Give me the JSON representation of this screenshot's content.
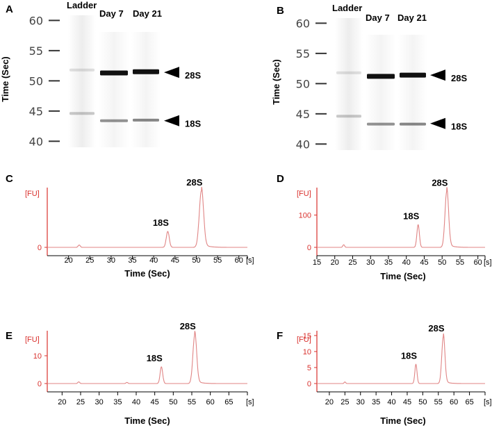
{
  "colors": {
    "trace": "#e08585",
    "axis": "#d9302c",
    "band": "#111111"
  },
  "gels": [
    {
      "panel": "A",
      "y_label": "Time (Sec)",
      "y_ticks": [
        60,
        55,
        50,
        45,
        40
      ],
      "ylim": [
        39,
        62
      ],
      "lanes": [
        {
          "label": "Ladder",
          "bands": [
            {
              "time": 51.8,
              "intensity": 0.12
            },
            {
              "time": 44.6,
              "intensity": 0.22
            }
          ]
        },
        {
          "label": "Day 7",
          "bands": [
            {
              "time": 51.3,
              "intensity": 1.0
            },
            {
              "time": 43.4,
              "intensity": 0.45
            }
          ]
        },
        {
          "label": "Day 21",
          "bands": [
            {
              "time": 51.5,
              "intensity": 1.0
            },
            {
              "time": 43.5,
              "intensity": 0.5
            }
          ]
        }
      ],
      "markers": [
        {
          "label": "28S",
          "time": 51.4
        },
        {
          "label": "18S",
          "time": 43.4
        }
      ]
    },
    {
      "panel": "B",
      "y_label": "Time (Sec)",
      "y_ticks": [
        60,
        55,
        50,
        45,
        40
      ],
      "ylim": [
        39,
        62
      ],
      "lanes": [
        {
          "label": "Ladder",
          "bands": [
            {
              "time": 51.8,
              "intensity": 0.12
            },
            {
              "time": 44.6,
              "intensity": 0.22
            }
          ]
        },
        {
          "label": "Day 7",
          "bands": [
            {
              "time": 51.2,
              "intensity": 1.0
            },
            {
              "time": 43.3,
              "intensity": 0.45
            }
          ]
        },
        {
          "label": "Day 21",
          "bands": [
            {
              "time": 51.4,
              "intensity": 1.0
            },
            {
              "time": 43.3,
              "intensity": 0.5
            }
          ]
        }
      ],
      "markers": [
        {
          "label": "28S",
          "time": 51.4
        },
        {
          "label": "18S",
          "time": 43.4
        }
      ]
    }
  ],
  "chart_data": [
    {
      "panel": "C",
      "type": "line",
      "xlabel": "Time (Sec)",
      "ylabel": "[FU]",
      "x_unit": "[s]",
      "xlim": [
        15,
        62
      ],
      "ylim": [
        -8,
        180
      ],
      "x_ticks": [
        20,
        25,
        30,
        35,
        40,
        45,
        50,
        55,
        60
      ],
      "y_ticks": [
        0
      ],
      "baseline": 0,
      "small_peaks": [
        {
          "x": 22.5,
          "height": 7
        }
      ],
      "peaks": [
        {
          "label": "18S",
          "x": 43.3,
          "height": 48,
          "width": 0.35
        },
        {
          "label": "28S",
          "x": 51.2,
          "height": 170,
          "width": 0.5
        }
      ]
    },
    {
      "panel": "D",
      "type": "line",
      "xlabel": "Time (Sec)",
      "ylabel": "[FU]",
      "x_unit": "[s]",
      "xlim": [
        15,
        62
      ],
      "ylim": [
        -8,
        185
      ],
      "x_ticks": [
        15,
        20,
        25,
        30,
        35,
        40,
        45,
        50,
        55,
        60
      ],
      "y_ticks": [
        0,
        100
      ],
      "baseline": 0,
      "small_peaks": [
        {
          "x": 22.5,
          "height": 8
        }
      ],
      "peaks": [
        {
          "label": "18S",
          "x": 43.3,
          "height": 70,
          "width": 0.35
        },
        {
          "label": "28S",
          "x": 51.3,
          "height": 173,
          "width": 0.5
        }
      ]
    },
    {
      "panel": "E",
      "type": "line",
      "xlabel": "Time (Sec)",
      "ylabel": "[FU]",
      "x_unit": "[s]",
      "xlim": [
        16,
        70
      ],
      "ylim": [
        -0.6,
        19
      ],
      "x_ticks": [
        20,
        25,
        30,
        35,
        40,
        45,
        50,
        55,
        60,
        65
      ],
      "y_ticks": [
        0,
        10
      ],
      "baseline": 0,
      "small_peaks": [
        {
          "x": 24.5,
          "height": 0.6
        },
        {
          "x": 37.5,
          "height": 0.4
        }
      ],
      "peaks": [
        {
          "label": "18S",
          "x": 46.8,
          "height": 6,
          "width": 0.35
        },
        {
          "label": "28S",
          "x": 55.8,
          "height": 17.5,
          "width": 0.5
        }
      ]
    },
    {
      "panel": "F",
      "type": "line",
      "xlabel": "Time (Sec)",
      "ylabel": "[FU]",
      "x_unit": "[s]",
      "xlim": [
        16,
        70
      ],
      "ylim": [
        -0.6,
        16.5
      ],
      "x_ticks": [
        20,
        25,
        30,
        35,
        40,
        45,
        50,
        55,
        60,
        65
      ],
      "y_ticks": [
        0,
        5,
        10,
        15
      ],
      "baseline": 0,
      "small_peaks": [
        {
          "x": 25,
          "height": 0.5
        }
      ],
      "peaks": [
        {
          "label": "18S",
          "x": 47.8,
          "height": 6,
          "width": 0.35
        },
        {
          "label": "28S",
          "x": 56.6,
          "height": 14.6,
          "width": 0.5
        }
      ]
    }
  ]
}
